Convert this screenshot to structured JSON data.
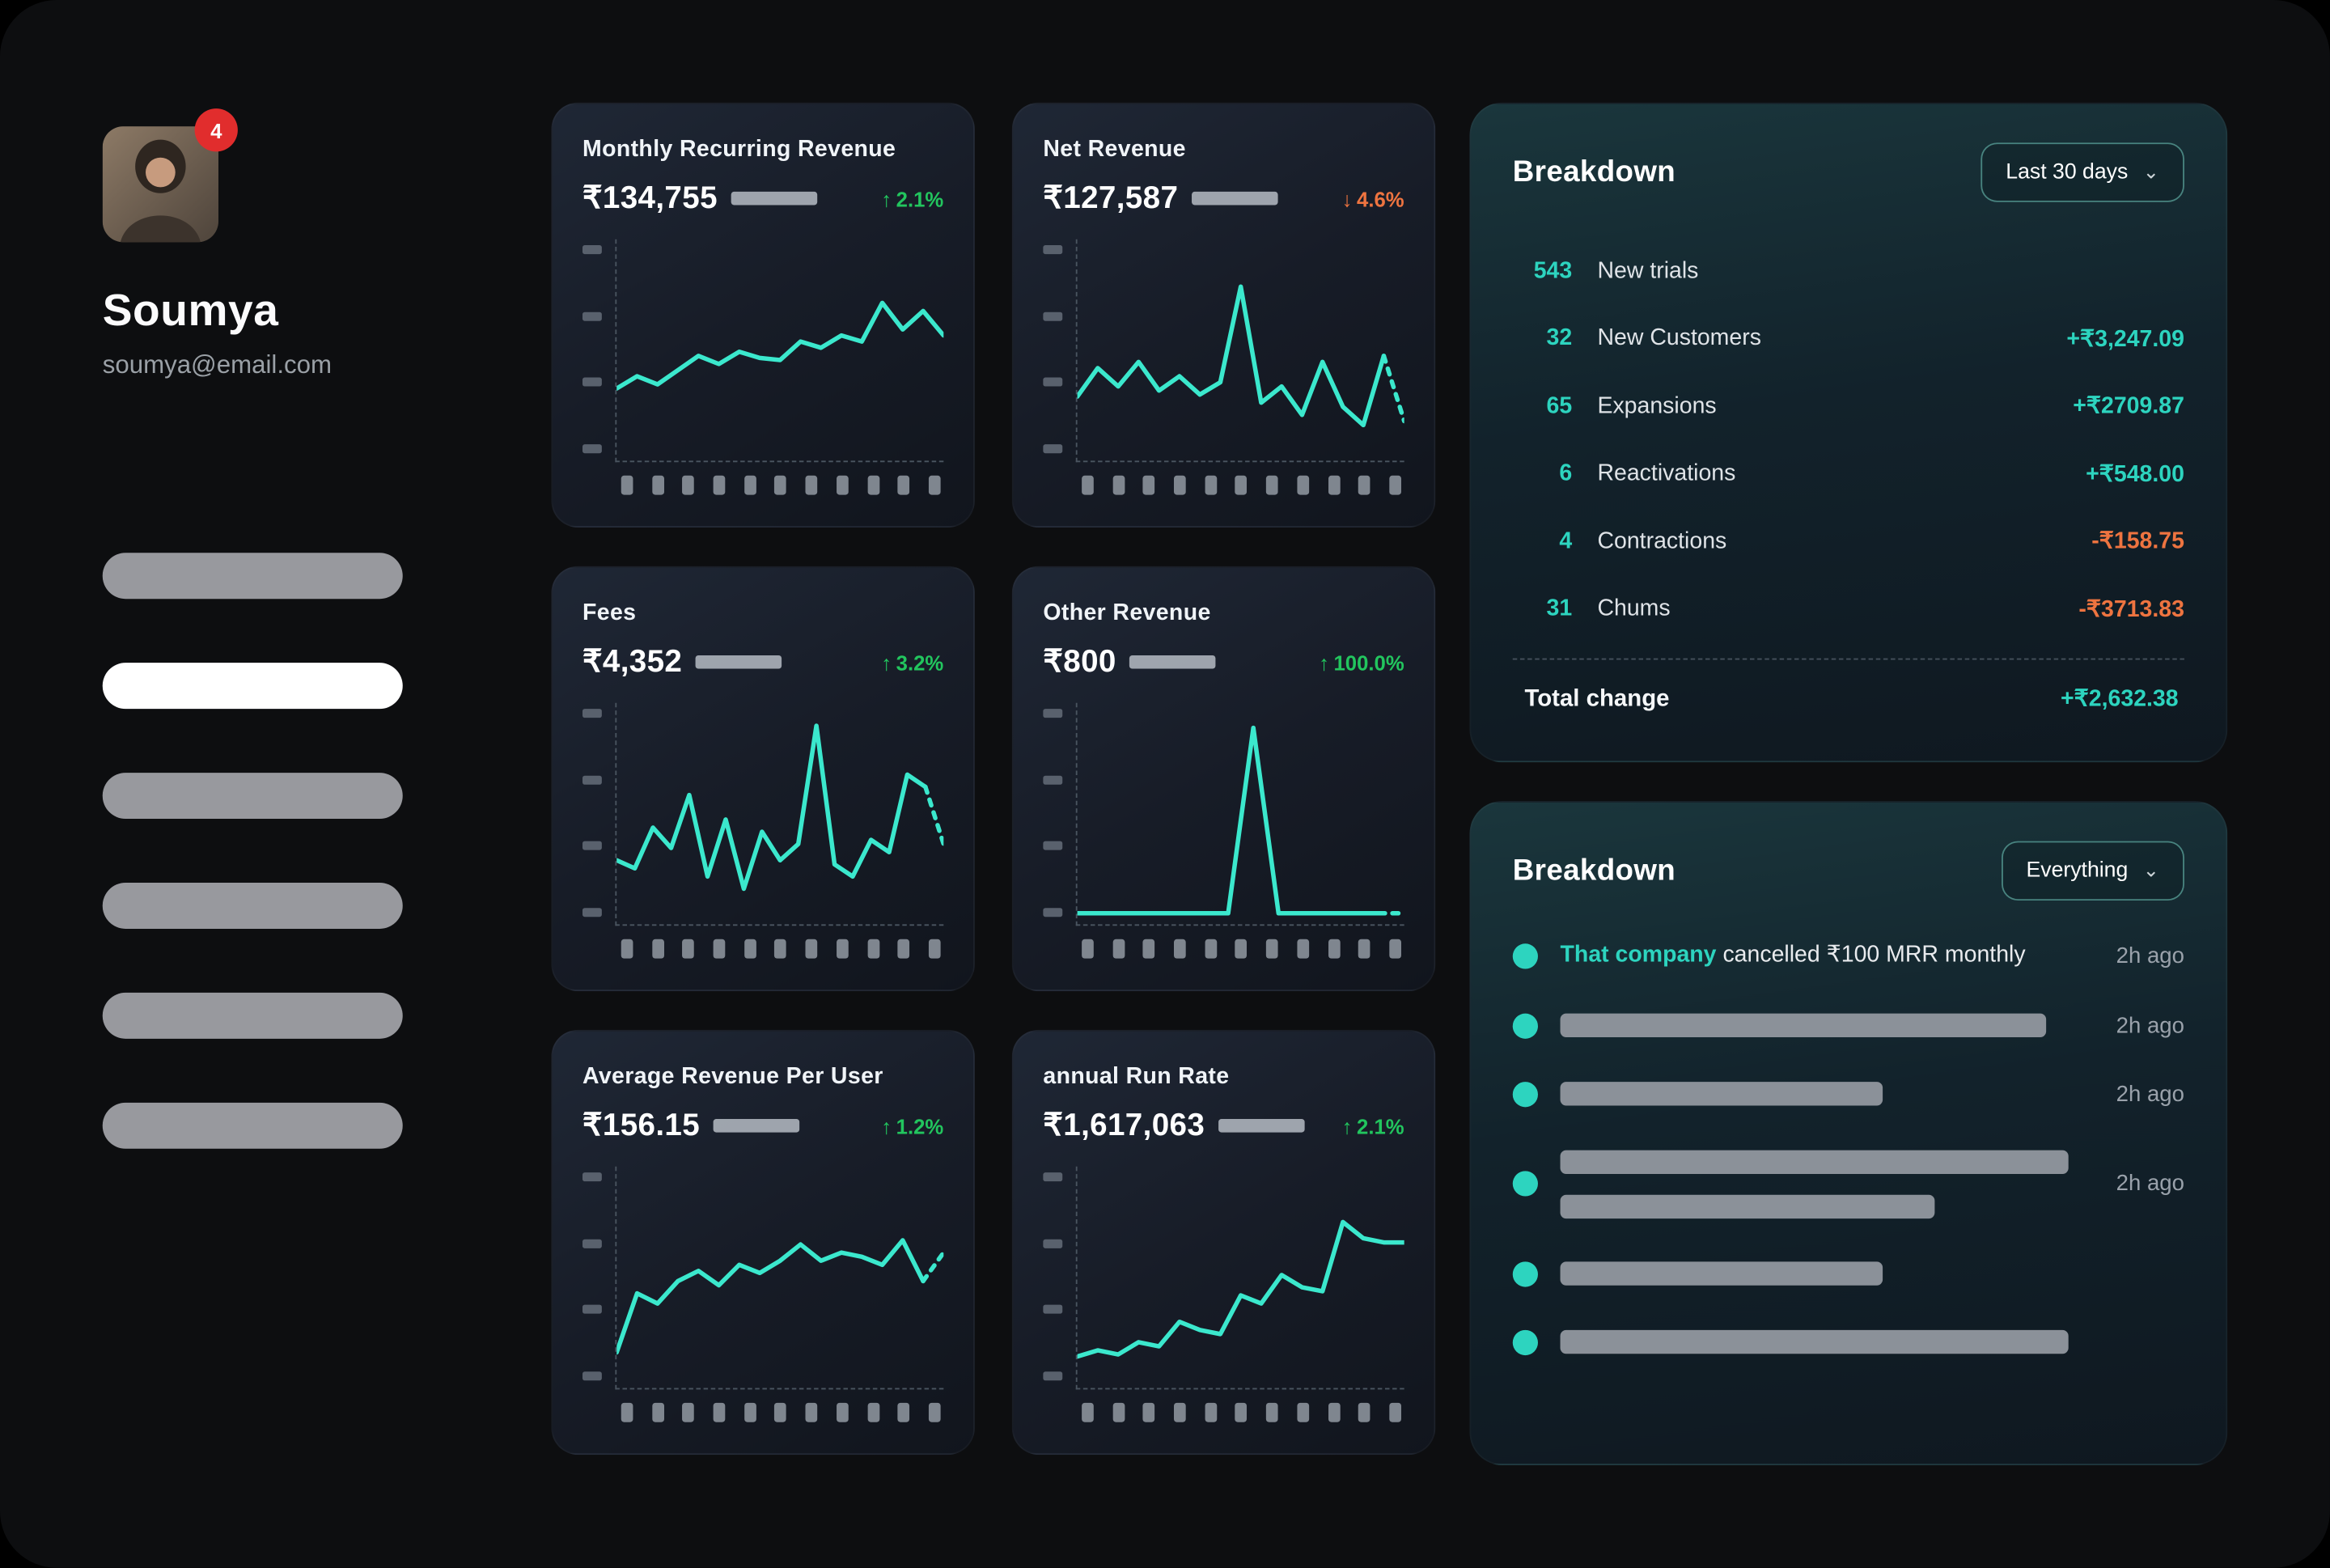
{
  "icons": {
    "chevron_down": "⌄",
    "arrow_up": "↑",
    "arrow_down": "↓",
    "activity_dot": "dot"
  },
  "colors": {
    "teal": "#2dd4bf",
    "line": "#3be8cd",
    "green": "#22c55e",
    "orange": "#ee7440",
    "badge_red": "#e12d2d"
  },
  "profile": {
    "name": "Soumya",
    "email": "soumya@email.com",
    "badge_count": "4",
    "nav_items": [
      {
        "active": false
      },
      {
        "active": true
      },
      {
        "active": false
      },
      {
        "active": false
      },
      {
        "active": false
      },
      {
        "active": false
      }
    ]
  },
  "cards": [
    {
      "title": "Monthly Recurring Revenue",
      "value": "₹134,755",
      "delta": "2.1%",
      "direction": "up",
      "spark": [
        34,
        40,
        36,
        43,
        50,
        46,
        52,
        49,
        48,
        57,
        54,
        60,
        57,
        76,
        63,
        72,
        60
      ],
      "dashed_tail": false
    },
    {
      "title": "Net Revenue",
      "value": "₹127,587",
      "delta": "4.6%",
      "direction": "down",
      "spark": [
        30,
        44,
        35,
        47,
        33,
        40,
        31,
        37,
        84,
        27,
        35,
        21,
        47,
        25,
        16,
        50,
        18
      ],
      "dashed_tail": true
    },
    {
      "title": "Fees",
      "value": "₹4,352",
      "delta": "3.2%",
      "direction": "up",
      "spark": [
        30,
        26,
        46,
        36,
        62,
        22,
        50,
        16,
        44,
        30,
        38,
        96,
        28,
        22,
        40,
        34,
        72,
        66,
        38
      ],
      "dashed_tail": true
    },
    {
      "title": "Other Revenue",
      "value": "₹800",
      "delta": "100.0%",
      "direction": "up",
      "spark": [
        4,
        4,
        4,
        4,
        4,
        4,
        4,
        95,
        4,
        4,
        4,
        4,
        4,
        4
      ],
      "dashed_tail": true
    },
    {
      "title": "Average Revenue Per User",
      "value": "₹156.15",
      "delta": "1.2%",
      "direction": "up",
      "spark": [
        16,
        45,
        40,
        51,
        56,
        49,
        59,
        55,
        61,
        69,
        61,
        65,
        63,
        59,
        71,
        51,
        65
      ],
      "dashed_tail": true
    },
    {
      "title": "annual Run Rate",
      "value": "₹1,617,063",
      "delta": "2.1%",
      "direction": "up",
      "spark": [
        14,
        17,
        15,
        21,
        19,
        31,
        27,
        25,
        44,
        40,
        54,
        48,
        46,
        80,
        72,
        70,
        70
      ],
      "dashed_tail": false
    }
  ],
  "breakdown": {
    "title": "Breakdown",
    "filter": "Last 30 days",
    "rows": [
      {
        "count": "543",
        "label": "New trials",
        "amount": "",
        "positive": true
      },
      {
        "count": "32",
        "label": "New Customers",
        "amount": "+₹3,247.09",
        "positive": true
      },
      {
        "count": "65",
        "label": "Expansions",
        "amount": "+₹2709.87",
        "positive": true
      },
      {
        "count": "6",
        "label": "Reactivations",
        "amount": "+₹548.00",
        "positive": true
      },
      {
        "count": "4",
        "label": "Contractions",
        "amount": "-₹158.75",
        "positive": false
      },
      {
        "count": "31",
        "label": "Chums",
        "amount": "-₹3713.83",
        "positive": false
      }
    ],
    "total_label": "Total change",
    "total_amount": "+₹2,632.38"
  },
  "activity": {
    "title": "Breakdown",
    "filter": "Everything",
    "rows": [
      {
        "highlight": "That company",
        "text": " cancelled ₹100 MRR monthly",
        "bars": [],
        "time": "2h ago"
      },
      {
        "bars": [
          327
        ],
        "time": "2h ago"
      },
      {
        "bars": [
          217
        ],
        "time": "2h ago"
      },
      {
        "bars": [
          342,
          252
        ],
        "time": "2h ago"
      },
      {
        "bars": [
          217
        ],
        "time": ""
      },
      {
        "bars": [
          342
        ],
        "time": ""
      }
    ]
  }
}
